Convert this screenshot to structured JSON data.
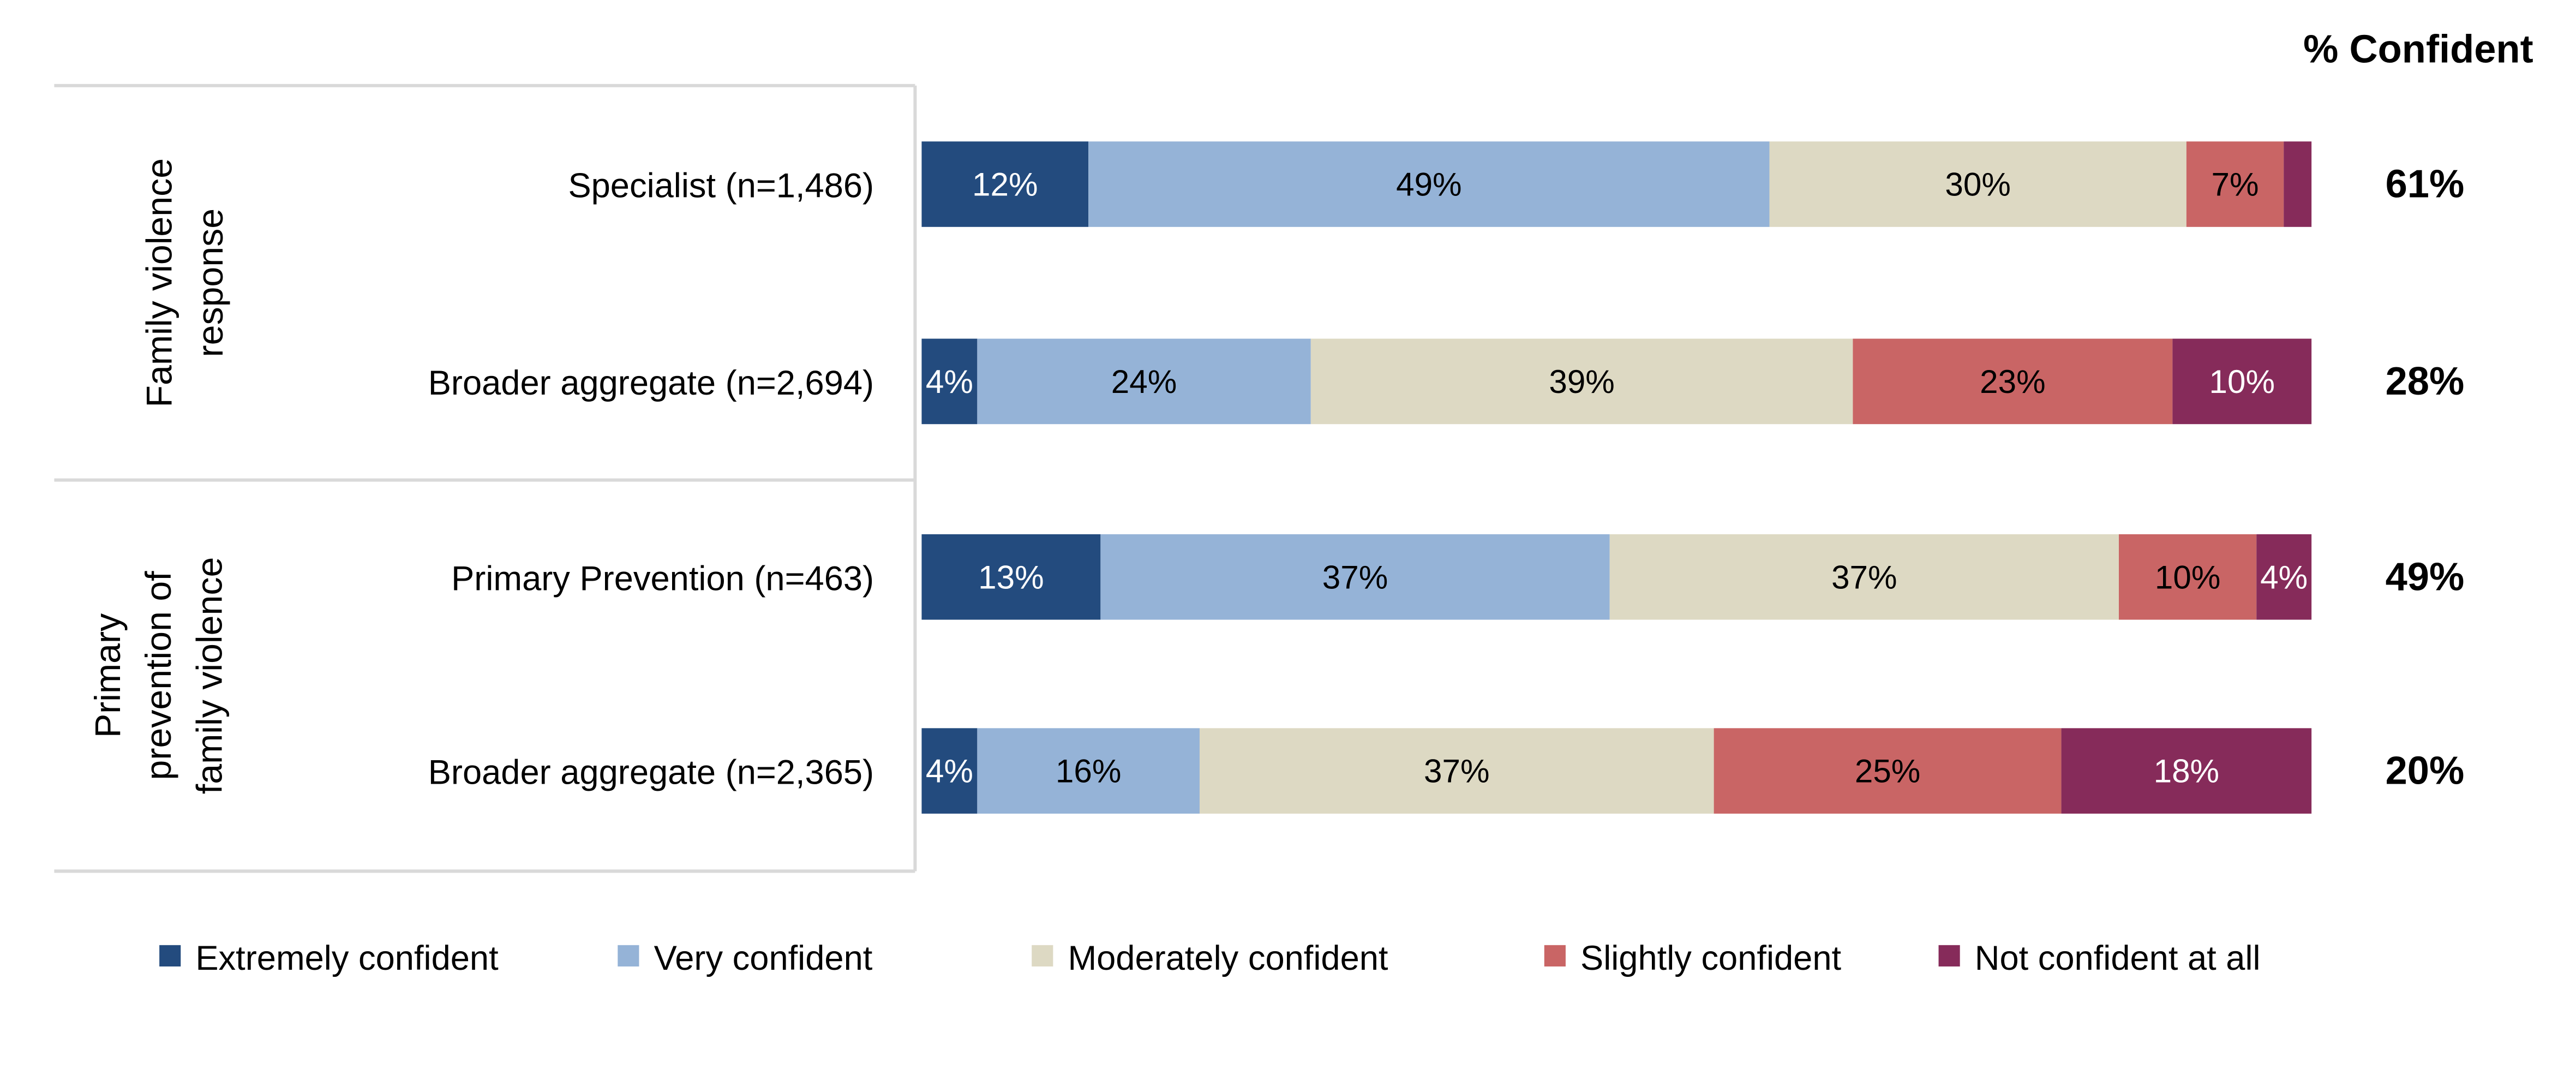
{
  "chart_data": {
    "type": "bar",
    "orientation": "horizontal",
    "stacked": true,
    "xlim": [
      0,
      100
    ],
    "grid": false,
    "legend_position": "bottom",
    "confident_header": "% Confident",
    "groups": [
      {
        "label": "Family violence response",
        "rows": [
          0,
          1
        ]
      },
      {
        "label": "Primary prevention of family violence",
        "rows": [
          2,
          3
        ]
      }
    ],
    "categories": [
      "Specialist (n=1,486)",
      "Broader aggregate (n=2,694)",
      "Primary Prevention (n=463)",
      "Broader aggregate (n=2,365)"
    ],
    "series": [
      {
        "name": "Extremely confident",
        "color": "#234B7E",
        "text_color": "#FFFFFF",
        "values": [
          12,
          4,
          13,
          4
        ],
        "labels": [
          "12%",
          "4%",
          "13%",
          "4%"
        ]
      },
      {
        "name": "Very confident",
        "color": "#95B3D7",
        "text_color": "#000000",
        "values": [
          49,
          24,
          37,
          16
        ],
        "labels": [
          "49%",
          "24%",
          "37%",
          "16%"
        ]
      },
      {
        "name": "Moderately confident",
        "color": "#DDD9C3",
        "text_color": "#000000",
        "values": [
          30,
          39,
          37,
          37
        ],
        "labels": [
          "30%",
          "39%",
          "37%",
          "37%"
        ]
      },
      {
        "name": "Slightly confident",
        "color": "#C96565",
        "text_color": "#000000",
        "values": [
          7,
          23,
          10,
          25
        ],
        "labels": [
          "7%",
          "23%",
          "10%",
          "25%"
        ]
      },
      {
        "name": "Not confident at all",
        "color": "#862B5A",
        "text_color": "#FFFFFF",
        "values": [
          2,
          10,
          4,
          18
        ],
        "labels": [
          "",
          "10%",
          "4%",
          "18%"
        ]
      }
    ],
    "percent_confident": [
      "61%",
      "28%",
      "49%",
      "20%"
    ]
  }
}
